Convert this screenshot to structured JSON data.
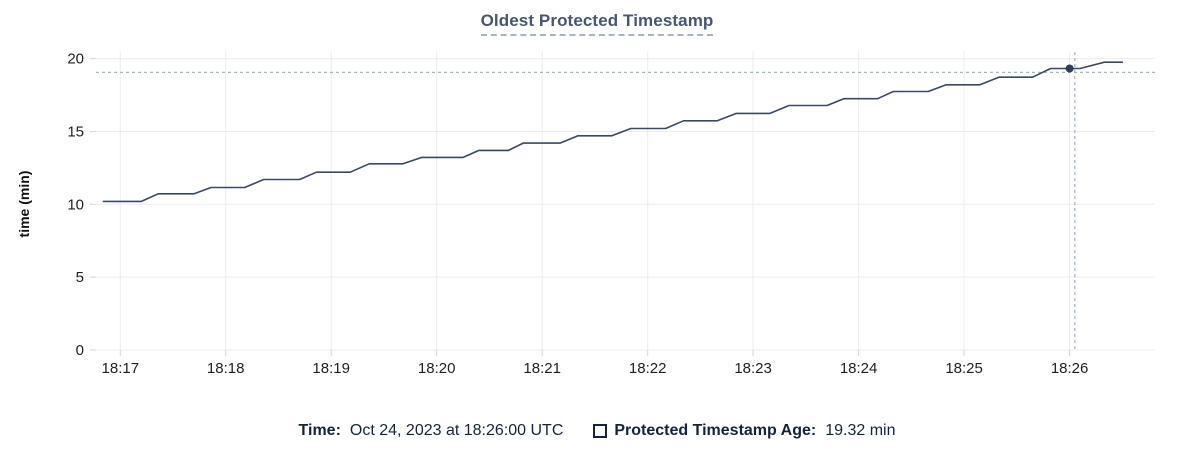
{
  "title": "Oldest Protected Timestamp",
  "colors": {
    "line": "#3a4963",
    "dot": "#2e3f5c",
    "grid": "#ececec",
    "tick": "#d6d6d6",
    "crosshair": "#a2b5c1",
    "title": "#475671",
    "title_underline": "#a9b4c4",
    "footer_text": "#14243c",
    "axis_text": "#1f1f1f",
    "axis_title": "#111111"
  },
  "chart_data": {
    "type": "line",
    "title": "Oldest Protected Timestamp",
    "xlabel": "",
    "ylabel": "time (min)",
    "ylim": [
      0,
      20
    ],
    "yticks": [
      0,
      5,
      10,
      15,
      20
    ],
    "xlim": [
      16.77,
      26.81
    ],
    "x_unit": "minutes after 18:00 UTC",
    "xticks": [
      {
        "t": 17,
        "label": "18:17"
      },
      {
        "t": 18,
        "label": "18:18"
      },
      {
        "t": 19,
        "label": "18:19"
      },
      {
        "t": 20,
        "label": "18:20"
      },
      {
        "t": 21,
        "label": "18:21"
      },
      {
        "t": 22,
        "label": "18:22"
      },
      {
        "t": 23,
        "label": "18:23"
      },
      {
        "t": 24,
        "label": "18:24"
      },
      {
        "t": 25,
        "label": "18:25"
      },
      {
        "t": 26,
        "label": "18:26"
      }
    ],
    "grid": true,
    "legend_position": "bottom",
    "series": [
      {
        "name": "Protected Timestamp Age",
        "points": [
          [
            16.84,
            10.2
          ],
          [
            17.2,
            10.2
          ],
          [
            17.36,
            10.72
          ],
          [
            17.7,
            10.72
          ],
          [
            17.86,
            11.15
          ],
          [
            18.18,
            11.15
          ],
          [
            18.36,
            11.7
          ],
          [
            18.7,
            11.7
          ],
          [
            18.86,
            12.2
          ],
          [
            19.18,
            12.2
          ],
          [
            19.36,
            12.78
          ],
          [
            19.68,
            12.78
          ],
          [
            19.86,
            13.22
          ],
          [
            20.25,
            13.22
          ],
          [
            20.4,
            13.7
          ],
          [
            20.68,
            13.7
          ],
          [
            20.82,
            14.2
          ],
          [
            21.17,
            14.2
          ],
          [
            21.34,
            14.7
          ],
          [
            21.66,
            14.7
          ],
          [
            21.84,
            15.2
          ],
          [
            22.17,
            15.2
          ],
          [
            22.34,
            15.73
          ],
          [
            22.66,
            15.73
          ],
          [
            22.84,
            16.24
          ],
          [
            23.16,
            16.24
          ],
          [
            23.34,
            16.78
          ],
          [
            23.7,
            16.78
          ],
          [
            23.86,
            17.25
          ],
          [
            24.18,
            17.25
          ],
          [
            24.33,
            17.74
          ],
          [
            24.66,
            17.74
          ],
          [
            24.83,
            18.2
          ],
          [
            25.15,
            18.2
          ],
          [
            25.33,
            18.72
          ],
          [
            25.65,
            18.72
          ],
          [
            25.82,
            19.32
          ],
          [
            26.1,
            19.32
          ],
          [
            26.33,
            19.75
          ],
          [
            26.5,
            19.75
          ]
        ]
      }
    ],
    "marker": {
      "t": 26.0,
      "v": 19.32
    },
    "crosshair": {
      "t": 26.05,
      "v": 19.05
    }
  },
  "legend": {
    "time_label": "Time:",
    "time_value": "Oct 24, 2023 at 18:26:00 UTC",
    "series_label": "Protected Timestamp Age:",
    "series_value": "19.32 min"
  }
}
